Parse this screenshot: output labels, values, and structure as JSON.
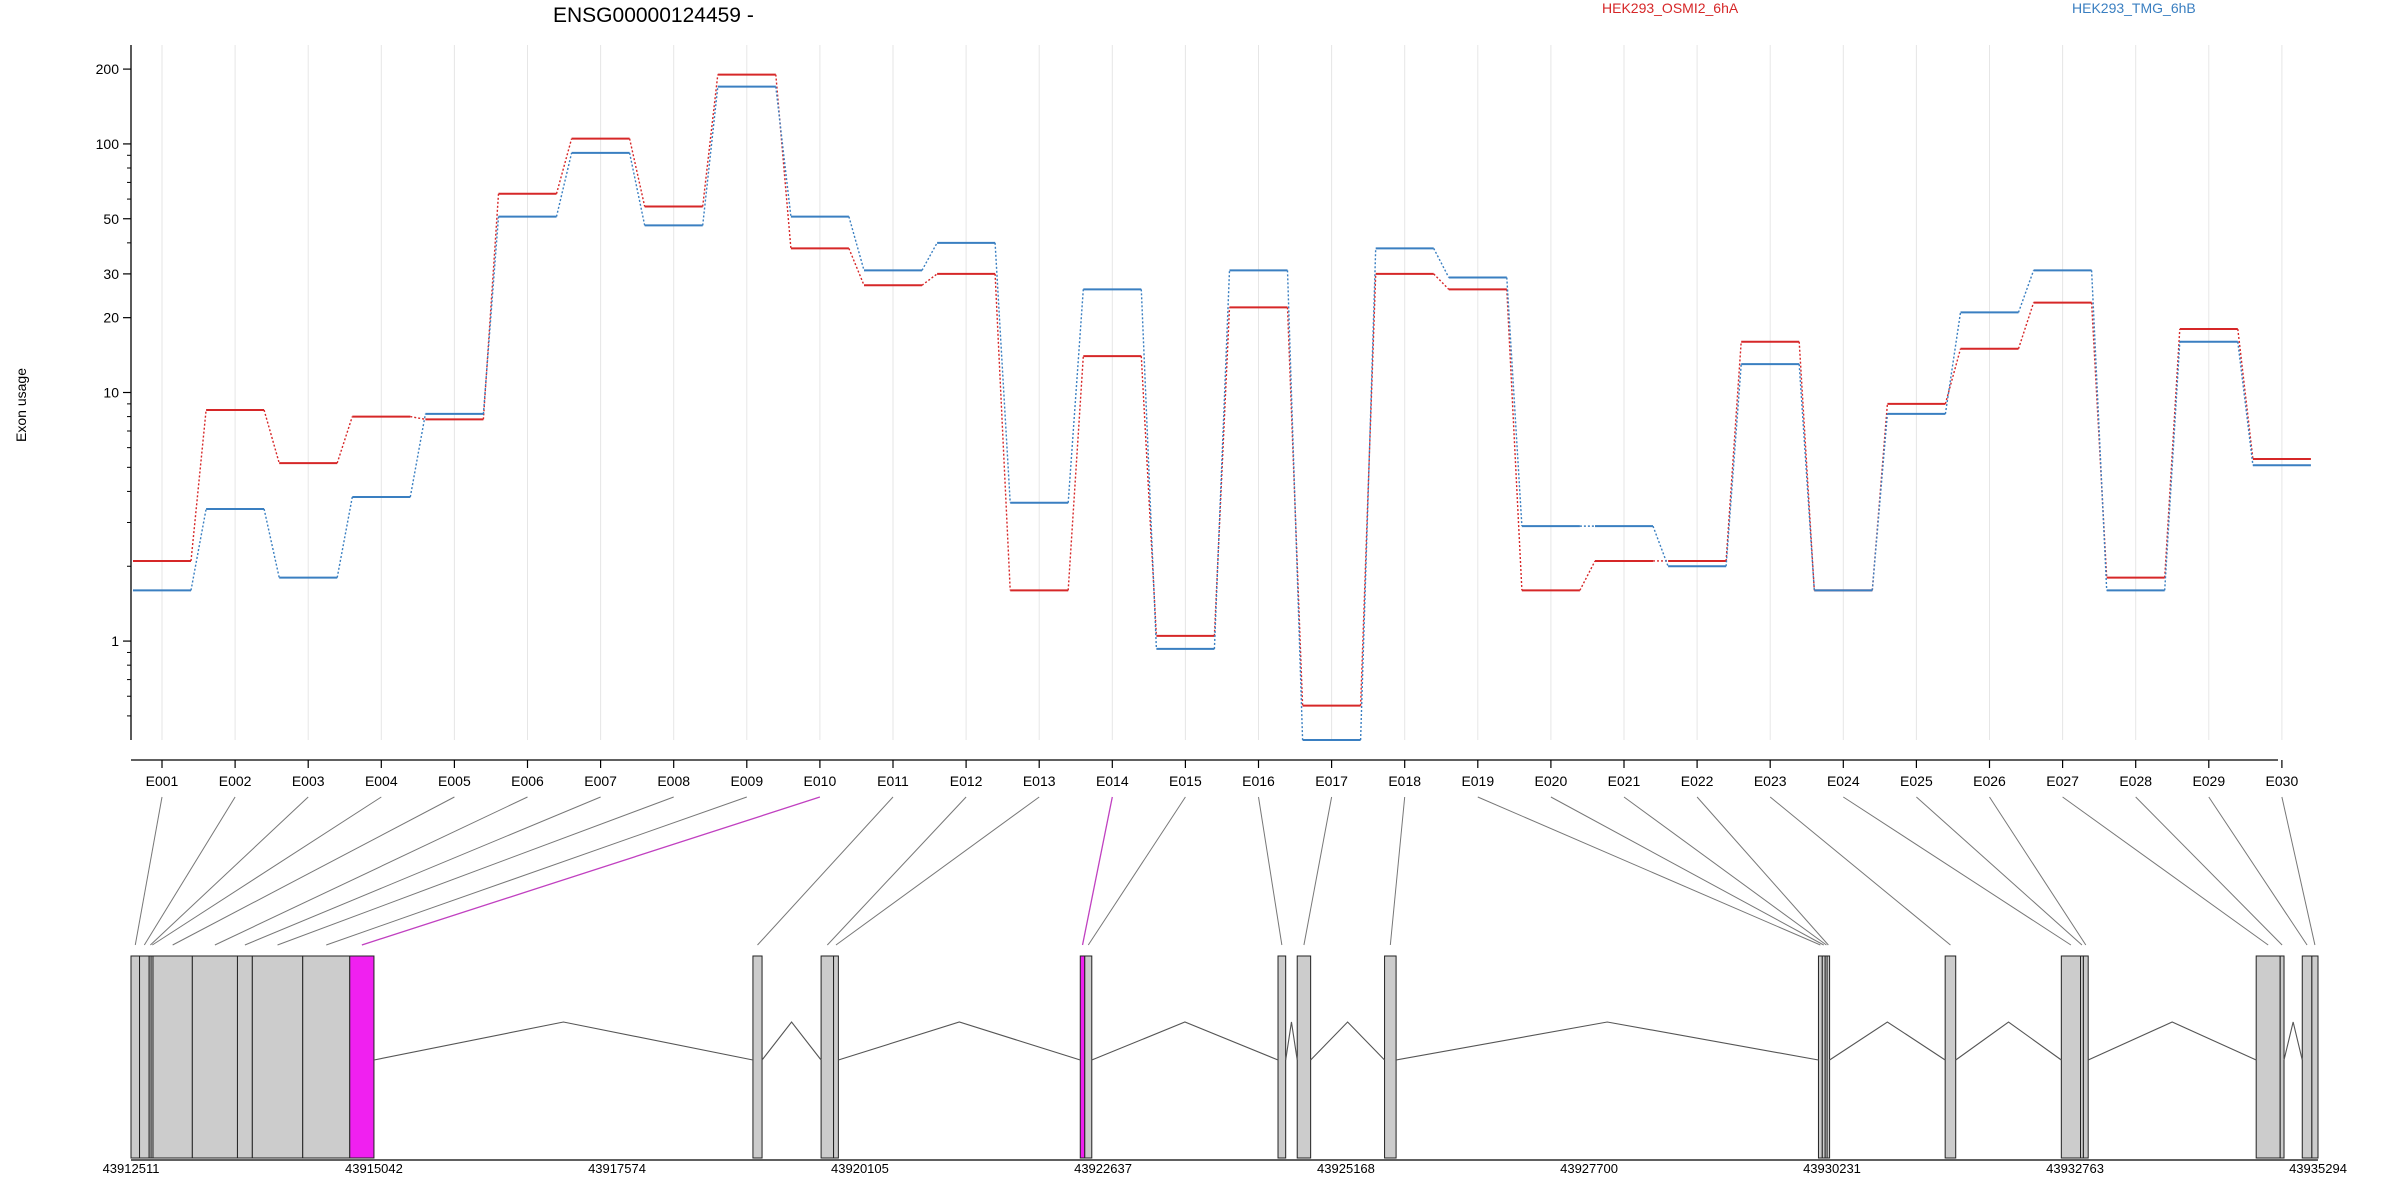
{
  "chart_data": {
    "type": "line",
    "title": "ENSG00000124459 -",
    "ylabel": "Exon usage",
    "xlabel": "",
    "y_scale": "log",
    "ylim": [
      0.4,
      250
    ],
    "y_ticks": [
      "1",
      "10",
      "20",
      "30",
      "50",
      "100",
      "200"
    ],
    "legend_placement": "top",
    "grid": "vertical, light",
    "categories": [
      "E001",
      "E002",
      "E003",
      "E004",
      "E005",
      "E006",
      "E007",
      "E008",
      "E009",
      "E010",
      "E011",
      "E012",
      "E013",
      "E014",
      "E015",
      "E016",
      "E017",
      "E018",
      "E019",
      "E020",
      "E021",
      "E022",
      "E023",
      "E024",
      "E025",
      "E026",
      "E027",
      "E028",
      "E029",
      "E030"
    ],
    "series": [
      {
        "name": "HEK293_OSMI2_6hA",
        "color": "#d62728",
        "values": [
          2.1,
          8.5,
          5.2,
          8.0,
          7.8,
          63,
          105,
          56,
          190,
          38,
          27,
          30,
          1.6,
          14,
          1.05,
          22,
          0.55,
          30,
          26,
          1.6,
          2.1,
          2.1,
          16,
          1.6,
          9,
          15,
          23,
          1.8,
          18,
          5.4
        ]
      },
      {
        "name": "HEK293_TMG_6hB",
        "color": "#3a7fc1",
        "values": [
          1.6,
          3.4,
          1.8,
          3.8,
          8.2,
          51,
          92,
          47,
          170,
          51,
          31,
          40,
          3.6,
          26,
          0.93,
          31,
          0.4,
          38,
          29,
          2.9,
          2.9,
          2.0,
          13,
          1.6,
          8.2,
          21,
          31,
          1.6,
          16,
          5.1
        ]
      }
    ],
    "gene_model": {
      "coordinate_ticks": [
        "43912511",
        "43915042",
        "43917574",
        "43920105",
        "43922637",
        "43925168",
        "43927700",
        "43930231",
        "43932763",
        "43935294"
      ],
      "coordinate_range": [
        43912511,
        43935294
      ],
      "highlight_color": "#f020f0",
      "highlighted_exons": [
        "E010",
        "E014"
      ],
      "exons": [
        {
          "id": "E001",
          "start": 43912511,
          "end": 43912600
        },
        {
          "id": "E002",
          "start": 43912600,
          "end": 43912700
        },
        {
          "id": "E003",
          "start": 43912700,
          "end": 43912720
        },
        {
          "id": "E004",
          "start": 43912720,
          "end": 43912740
        },
        {
          "id": "E005",
          "start": 43912740,
          "end": 43913150
        },
        {
          "id": "E006",
          "start": 43913150,
          "end": 43913620
        },
        {
          "id": "E007",
          "start": 43913620,
          "end": 43913775
        },
        {
          "id": "E008",
          "start": 43913775,
          "end": 43914300
        },
        {
          "id": "E009",
          "start": 43914300,
          "end": 43914790
        },
        {
          "id": "E010",
          "start": 43914790,
          "end": 43915042
        },
        {
          "id": "E011",
          "start": 43918990,
          "end": 43919085
        },
        {
          "id": "E012",
          "start": 43919700,
          "end": 43919830
        },
        {
          "id": "E013",
          "start": 43919830,
          "end": 43919880
        },
        {
          "id": "E014",
          "start": 43922400,
          "end": 43922447
        },
        {
          "id": "E015",
          "start": 43922447,
          "end": 43922520
        },
        {
          "id": "E016",
          "start": 43924460,
          "end": 43924540
        },
        {
          "id": "E017",
          "start": 43924660,
          "end": 43924800
        },
        {
          "id": "E018",
          "start": 43925570,
          "end": 43925690
        },
        {
          "id": "E019",
          "start": 43930090,
          "end": 43930130
        },
        {
          "id": "E020",
          "start": 43930130,
          "end": 43930160
        },
        {
          "id": "E021",
          "start": 43930160,
          "end": 43930180
        },
        {
          "id": "E022",
          "start": 43930180,
          "end": 43930200
        },
        {
          "id": "E023",
          "start": 43931410,
          "end": 43931520
        },
        {
          "id": "E024",
          "start": 43932620,
          "end": 43932820
        },
        {
          "id": "E025",
          "start": 43932820,
          "end": 43932850
        },
        {
          "id": "E026",
          "start": 43932850,
          "end": 43932900
        },
        {
          "id": "E027",
          "start": 43934650,
          "end": 43934900
        },
        {
          "id": "E028",
          "start": 43934900,
          "end": 43934940
        },
        {
          "id": "E029",
          "start": 43935130,
          "end": 43935230
        },
        {
          "id": "E030",
          "start": 43935230,
          "end": 43935294
        }
      ]
    }
  }
}
